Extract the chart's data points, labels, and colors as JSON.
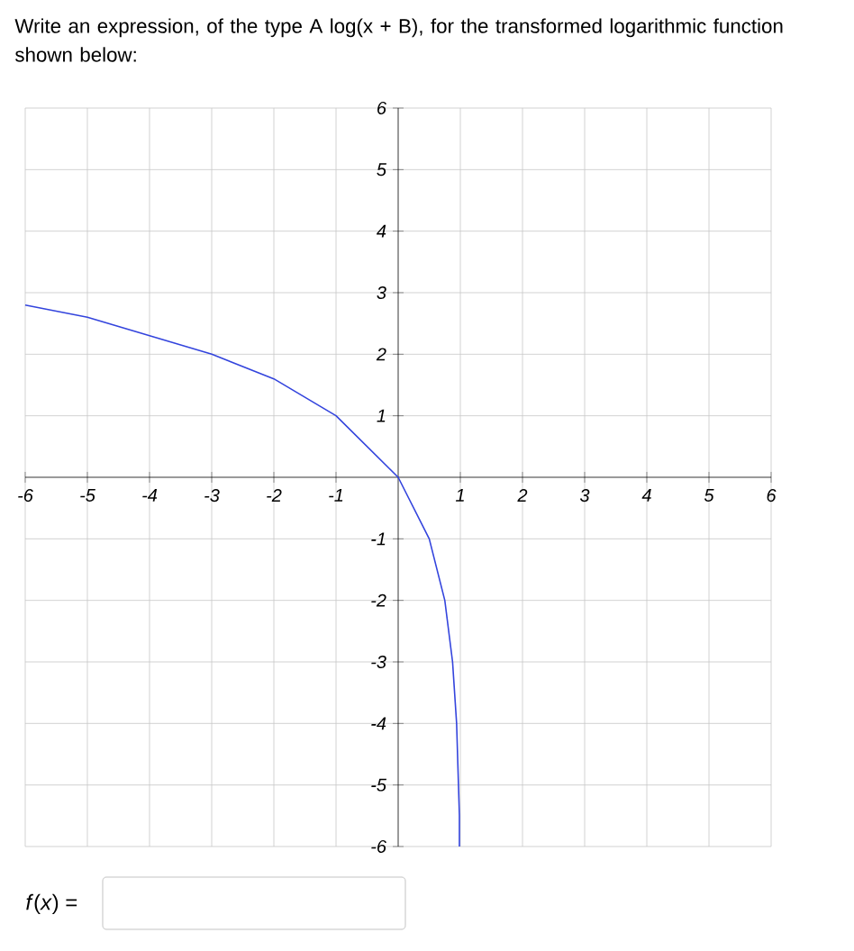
{
  "chart_data": {
    "type": "line",
    "title": "Write an expression, of the type A log(x + B), for the transformed logarithmic function shown below:",
    "x": [
      -6,
      -5,
      -4,
      -3,
      -2,
      -1,
      0,
      0.5,
      0.75,
      0.875,
      0.94,
      0.97,
      0.985,
      0.985
    ],
    "series": [
      {
        "color": "#3344dd",
        "values": [
          2.8,
          2.6,
          2.3,
          2,
          1.6,
          1,
          0,
          -1,
          -2,
          -3,
          -4,
          -5,
          -5.5,
          -6
        ]
      }
    ],
    "xlim": [
      -6,
      6
    ],
    "ylim": [
      -6,
      6
    ],
    "xticks": [
      -6,
      -5,
      -4,
      -3,
      -2,
      -1,
      1,
      2,
      3,
      4,
      5,
      6
    ],
    "yticks": [
      -6,
      -5,
      -4,
      -3,
      -2,
      -1,
      1,
      2,
      3,
      4,
      5,
      6
    ],
    "grid": true,
    "annotations": [
      "*f*(*x*) ="
    ]
  }
}
